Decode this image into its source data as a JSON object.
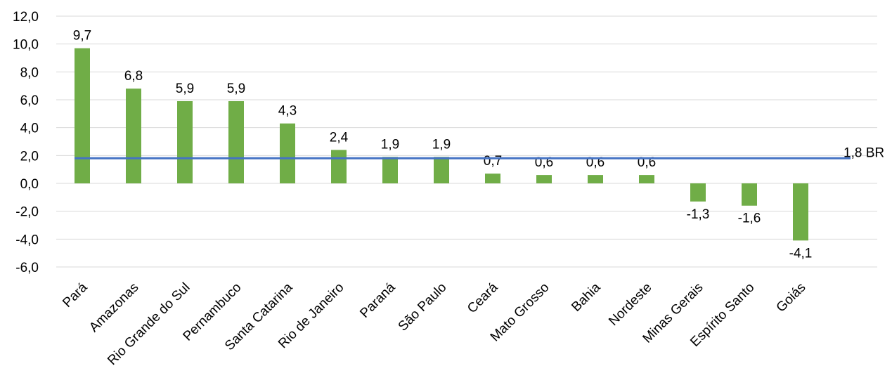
{
  "chart_data": {
    "type": "bar",
    "categories": [
      "Pará",
      "Amazonas",
      "Rio Grande do Sul",
      "Pernambuco",
      "Santa Catarina",
      "Rio de Janeiro",
      "Paraná",
      "São Paulo",
      "Ceará",
      "Mato Grosso",
      "Bahia",
      "Nordeste",
      "Minas Gerais",
      "Espírito Santo",
      "Goiás"
    ],
    "values": [
      9.7,
      6.8,
      5.9,
      5.9,
      4.3,
      2.4,
      1.9,
      1.9,
      0.7,
      0.6,
      0.6,
      0.6,
      -1.3,
      -1.6,
      -4.1
    ],
    "data_labels": [
      "9,7",
      "6,8",
      "5,9",
      "5,9",
      "4,3",
      "2,4",
      "1,9",
      "1,9",
      "0,7",
      "0,6",
      "0,6",
      "0,6",
      "-1,3",
      "-1,6",
      "-4,1"
    ],
    "y_ticks": [
      12,
      10,
      8,
      6,
      4,
      2,
      0,
      -2,
      -4,
      -6
    ],
    "y_tick_labels": [
      "12,0",
      "10,0",
      "8,0",
      "6,0",
      "4,0",
      "2,0",
      "0,0",
      "-2,0",
      "-4,0",
      "-6,0"
    ],
    "ylim": [
      -6,
      12
    ],
    "grid": true,
    "bar_color": "#70ad47",
    "reference_line": {
      "value": 1.8,
      "label": "1,8 BR",
      "color": "#4472c4"
    }
  }
}
